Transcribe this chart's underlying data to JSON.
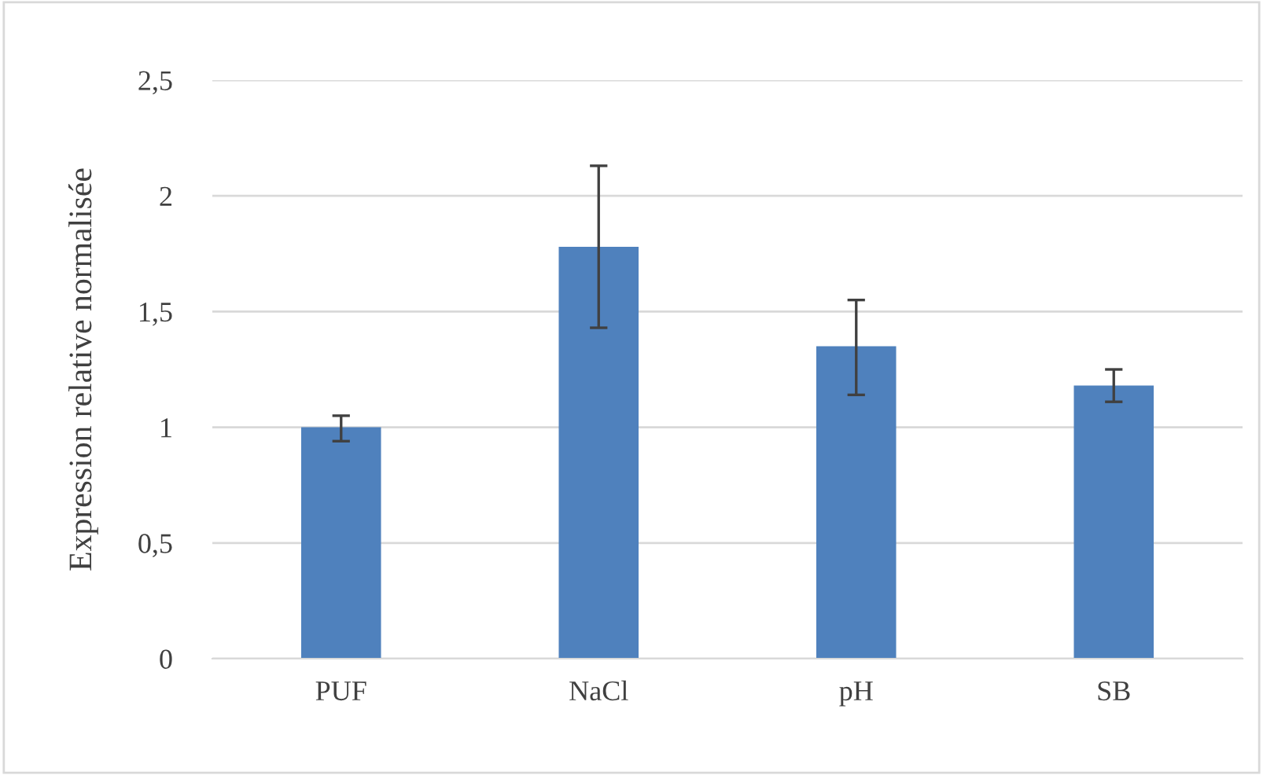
{
  "chart_data": {
    "type": "bar",
    "ylabel": "Expression relative normalisée",
    "categories": [
      "PUF",
      "NaCl",
      "pH",
      "SB"
    ],
    "values": [
      1.0,
      1.78,
      1.35,
      1.18
    ],
    "errors": [
      [
        0.94,
        1.05
      ],
      [
        1.43,
        2.13
      ],
      [
        1.14,
        1.55
      ],
      [
        1.11,
        1.25
      ]
    ],
    "color": "#4f81bd",
    "ylim": [
      0,
      2.5
    ],
    "yticks": [
      0,
      {
        "value": 0.5,
        "label": "0,5"
      },
      1,
      {
        "value": 1.5,
        "label": "1,5"
      },
      2,
      {
        "value": 2.5,
        "label": "2,5"
      }
    ],
    "grid": "y"
  }
}
